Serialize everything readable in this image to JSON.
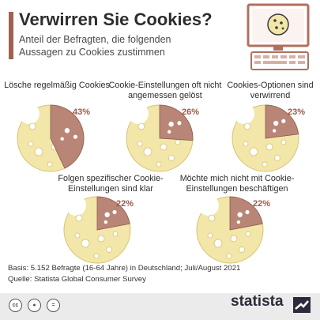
{
  "header": {
    "title": "Verwirren Sie Cookies?",
    "subtitle": "Anteil der Befragten, die folgenden Aussagen zu Cookies zustimmen"
  },
  "chart_data": {
    "type": "pie",
    "items": [
      {
        "label": "Lösche regelmäßig Cookies",
        "value": 43,
        "value_label": "43%"
      },
      {
        "label": "Cookie-Einstellungen oft nicht angemessen gelöst",
        "value": 26,
        "value_label": "26%"
      },
      {
        "label": "Cookies-Optionen sind verwirrend",
        "value": 23,
        "value_label": "23%"
      },
      {
        "label": "Folgen spezifischer Cookie-Einstellungen sind klar",
        "value": 22,
        "value_label": "22%"
      },
      {
        "label": "Möchte mich nicht mit Cookie-Einstellungen beschäftigen",
        "value": 22,
        "value_label": "22%"
      }
    ],
    "colors": {
      "cookie": "#f2e6a8",
      "cookie_edge": "#d9c27a",
      "bitten": "#b88577",
      "accent": "#a0614e"
    }
  },
  "footer": {
    "note": "Basis: 5.152 Befragte (16-64 Jahre) in Deutschland; Juli/August 2021",
    "source": "Quelle: Statista Global Consumer Survey",
    "logo": "statista",
    "cc_icons": [
      "cc-icon",
      "person-icon",
      "equals-icon"
    ]
  }
}
